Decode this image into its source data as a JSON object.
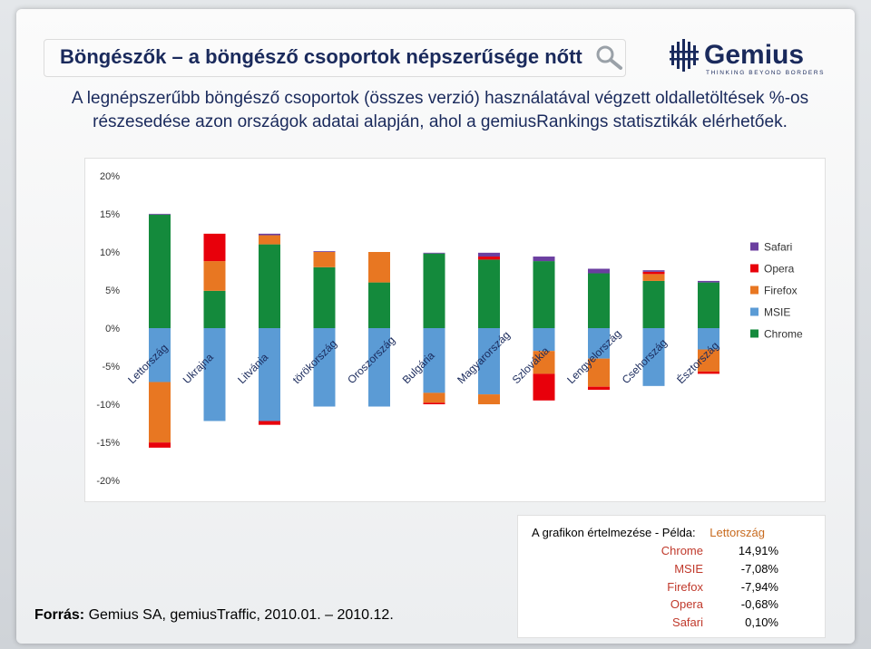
{
  "header": {
    "title": "Böngészők – a böngésző csoportok népszerűsége nőtt",
    "subtitle_line1": "A legnépszerűbb böngésző csoportok (összes verzió) használatával végzett oldalletöltések %-os",
    "subtitle_line2": "részesedése azon országok adatai alapján, ahol a gemiusRankings statisztikák elérhetőek.",
    "logo_text": "Gemius",
    "logo_tagline": "THINKING BEYOND BORDERS"
  },
  "colors": {
    "Chrome": "#148a3c",
    "MSIE": "#5b9bd5",
    "Firefox": "#e87722",
    "Opera": "#e8000b",
    "Safari": "#6b3fa0"
  },
  "chart_data": {
    "type": "bar",
    "stacked": "diverging",
    "categories": [
      "Lettország",
      "Ukrajna",
      "Litvánia",
      "törökország",
      "Oroszország",
      "Bulgária",
      "Magyarország",
      "Szlovákia",
      "Lengyelország",
      "Csehország",
      "Észtország"
    ],
    "series": [
      {
        "name": "Chrome",
        "values": [
          14.91,
          4.9,
          11.0,
          8.0,
          6.0,
          9.8,
          9.0,
          8.8,
          7.2,
          6.2,
          6.0
        ]
      },
      {
        "name": "MSIE",
        "values": [
          -7.08,
          -12.2,
          -12.2,
          -10.3,
          -10.3,
          -8.5,
          -8.7,
          -3.0,
          -4.0,
          -7.6,
          -2.8
        ]
      },
      {
        "name": "Firefox",
        "values": [
          -7.94,
          3.9,
          1.2,
          2.0,
          4.0,
          -1.3,
          -1.3,
          -3.0,
          -3.7,
          0.9,
          -2.9
        ]
      },
      {
        "name": "Opera",
        "values": [
          -0.68,
          3.6,
          -0.5,
          0.0,
          0.0,
          -0.2,
          0.4,
          -3.5,
          -0.4,
          0.3,
          -0.3
        ]
      },
      {
        "name": "Safari",
        "values": [
          0.1,
          0.0,
          0.2,
          0.1,
          0.0,
          0.1,
          0.5,
          0.6,
          0.6,
          0.2,
          0.2
        ]
      }
    ],
    "ylim": [
      -20,
      20
    ],
    "yticks": [
      "20%",
      "15%",
      "10%",
      "5%",
      "0%",
      "-5%",
      "-10%",
      "-15%",
      "-20%"
    ],
    "ytick_values": [
      20,
      15,
      10,
      5,
      0,
      -5,
      -10,
      -15,
      -20
    ],
    "legend": [
      "Safari",
      "Opera",
      "Firefox",
      "MSIE",
      "Chrome"
    ],
    "legend_position": "right",
    "grid": false
  },
  "example": {
    "head_label": "A grafikon értelmezése - Példa:",
    "head_country": "Lettország",
    "rows": [
      {
        "name": "Chrome",
        "value": "14,91%"
      },
      {
        "name": "MSIE",
        "value": "-7,08%"
      },
      {
        "name": "Firefox",
        "value": "-7,94%"
      },
      {
        "name": "Opera",
        "value": "-0,68%"
      },
      {
        "name": "Safari",
        "value": "0,10%"
      }
    ]
  },
  "source": {
    "label": "Forrás:",
    "text": "Gemius SA, gemiusTraffic, 2010.01. – 2010.12."
  }
}
